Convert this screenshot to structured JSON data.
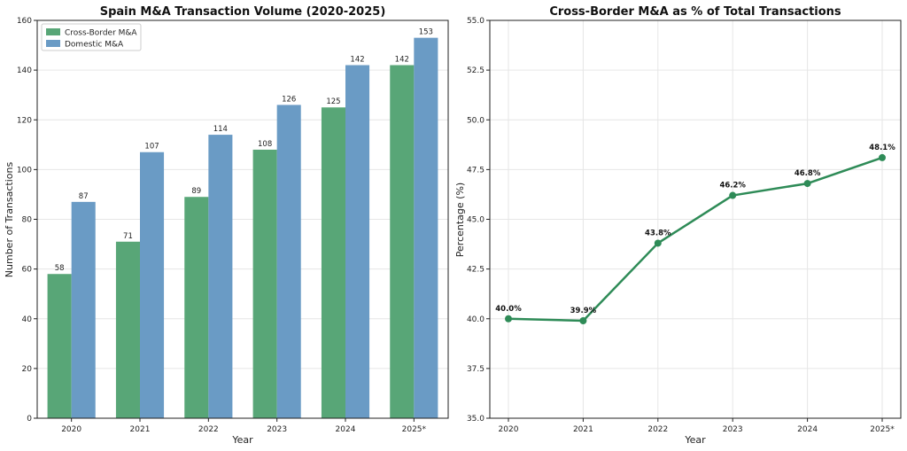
{
  "chart_data": [
    {
      "type": "bar",
      "title": "Spain M&A Transaction Volume (2020-2025)",
      "xlabel": "Year",
      "ylabel": "Number of Transactions",
      "categories": [
        "2020",
        "2021",
        "2022",
        "2023",
        "2024",
        "2025*"
      ],
      "series": [
        {
          "name": "Cross-Border M&A",
          "values": [
            58,
            71,
            89,
            108,
            125,
            142
          ],
          "color": "#58a677"
        },
        {
          "name": "Domestic M&A",
          "values": [
            87,
            107,
            114,
            126,
            142,
            153
          ],
          "color": "#6a9bc5"
        }
      ],
      "ylim": [
        0,
        160
      ],
      "yticks": [
        0,
        20,
        40,
        60,
        80,
        100,
        120,
        140,
        160
      ],
      "grid": true,
      "legend": "top-left",
      "data_labels": true
    },
    {
      "type": "line",
      "title": "Cross-Border M&A as % of Total Transactions",
      "xlabel": "Year",
      "ylabel": "Percentage (%)",
      "categories": [
        "2020",
        "2021",
        "2022",
        "2023",
        "2024",
        "2025*"
      ],
      "series": [
        {
          "values": [
            40.0,
            39.9,
            43.8,
            46.2,
            46.8,
            48.1
          ],
          "color": "#2e8b57"
        }
      ],
      "value_labels": [
        "40.0%",
        "39.9%",
        "43.8%",
        "46.2%",
        "46.8%",
        "48.1%"
      ],
      "ylim": [
        35.0,
        55.0
      ],
      "yticks": [
        35.0,
        37.5,
        40.0,
        42.5,
        45.0,
        47.5,
        50.0,
        52.5,
        55.0
      ],
      "ytick_labels": [
        "35.0",
        "37.5",
        "40.0",
        "42.5",
        "45.0",
        "47.5",
        "50.0",
        "52.5",
        "55.0"
      ],
      "grid": true,
      "data_labels": true
    }
  ]
}
